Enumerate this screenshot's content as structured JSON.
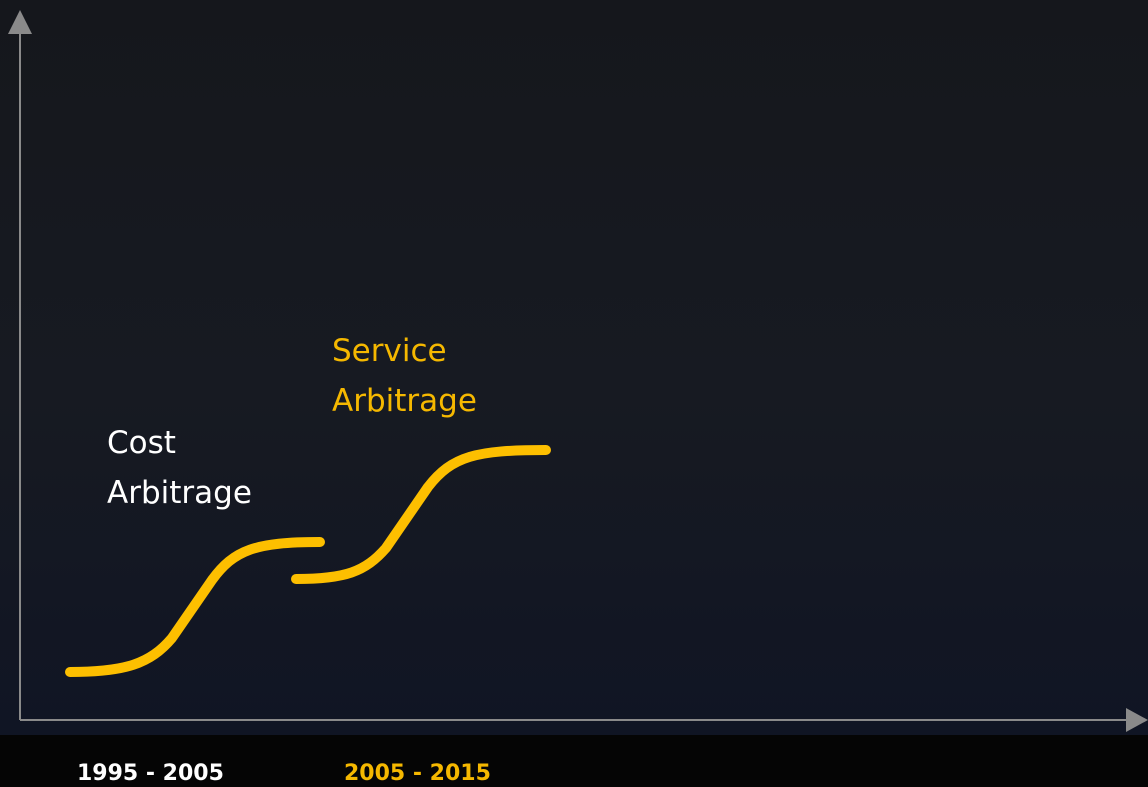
{
  "phases": [
    {
      "label": [
        "Cost",
        "Arbitrage"
      ],
      "period": "1995 - 2005"
    },
    {
      "label": [
        "Service",
        "Arbitrage"
      ],
      "period": "2005 - 2015"
    }
  ]
}
